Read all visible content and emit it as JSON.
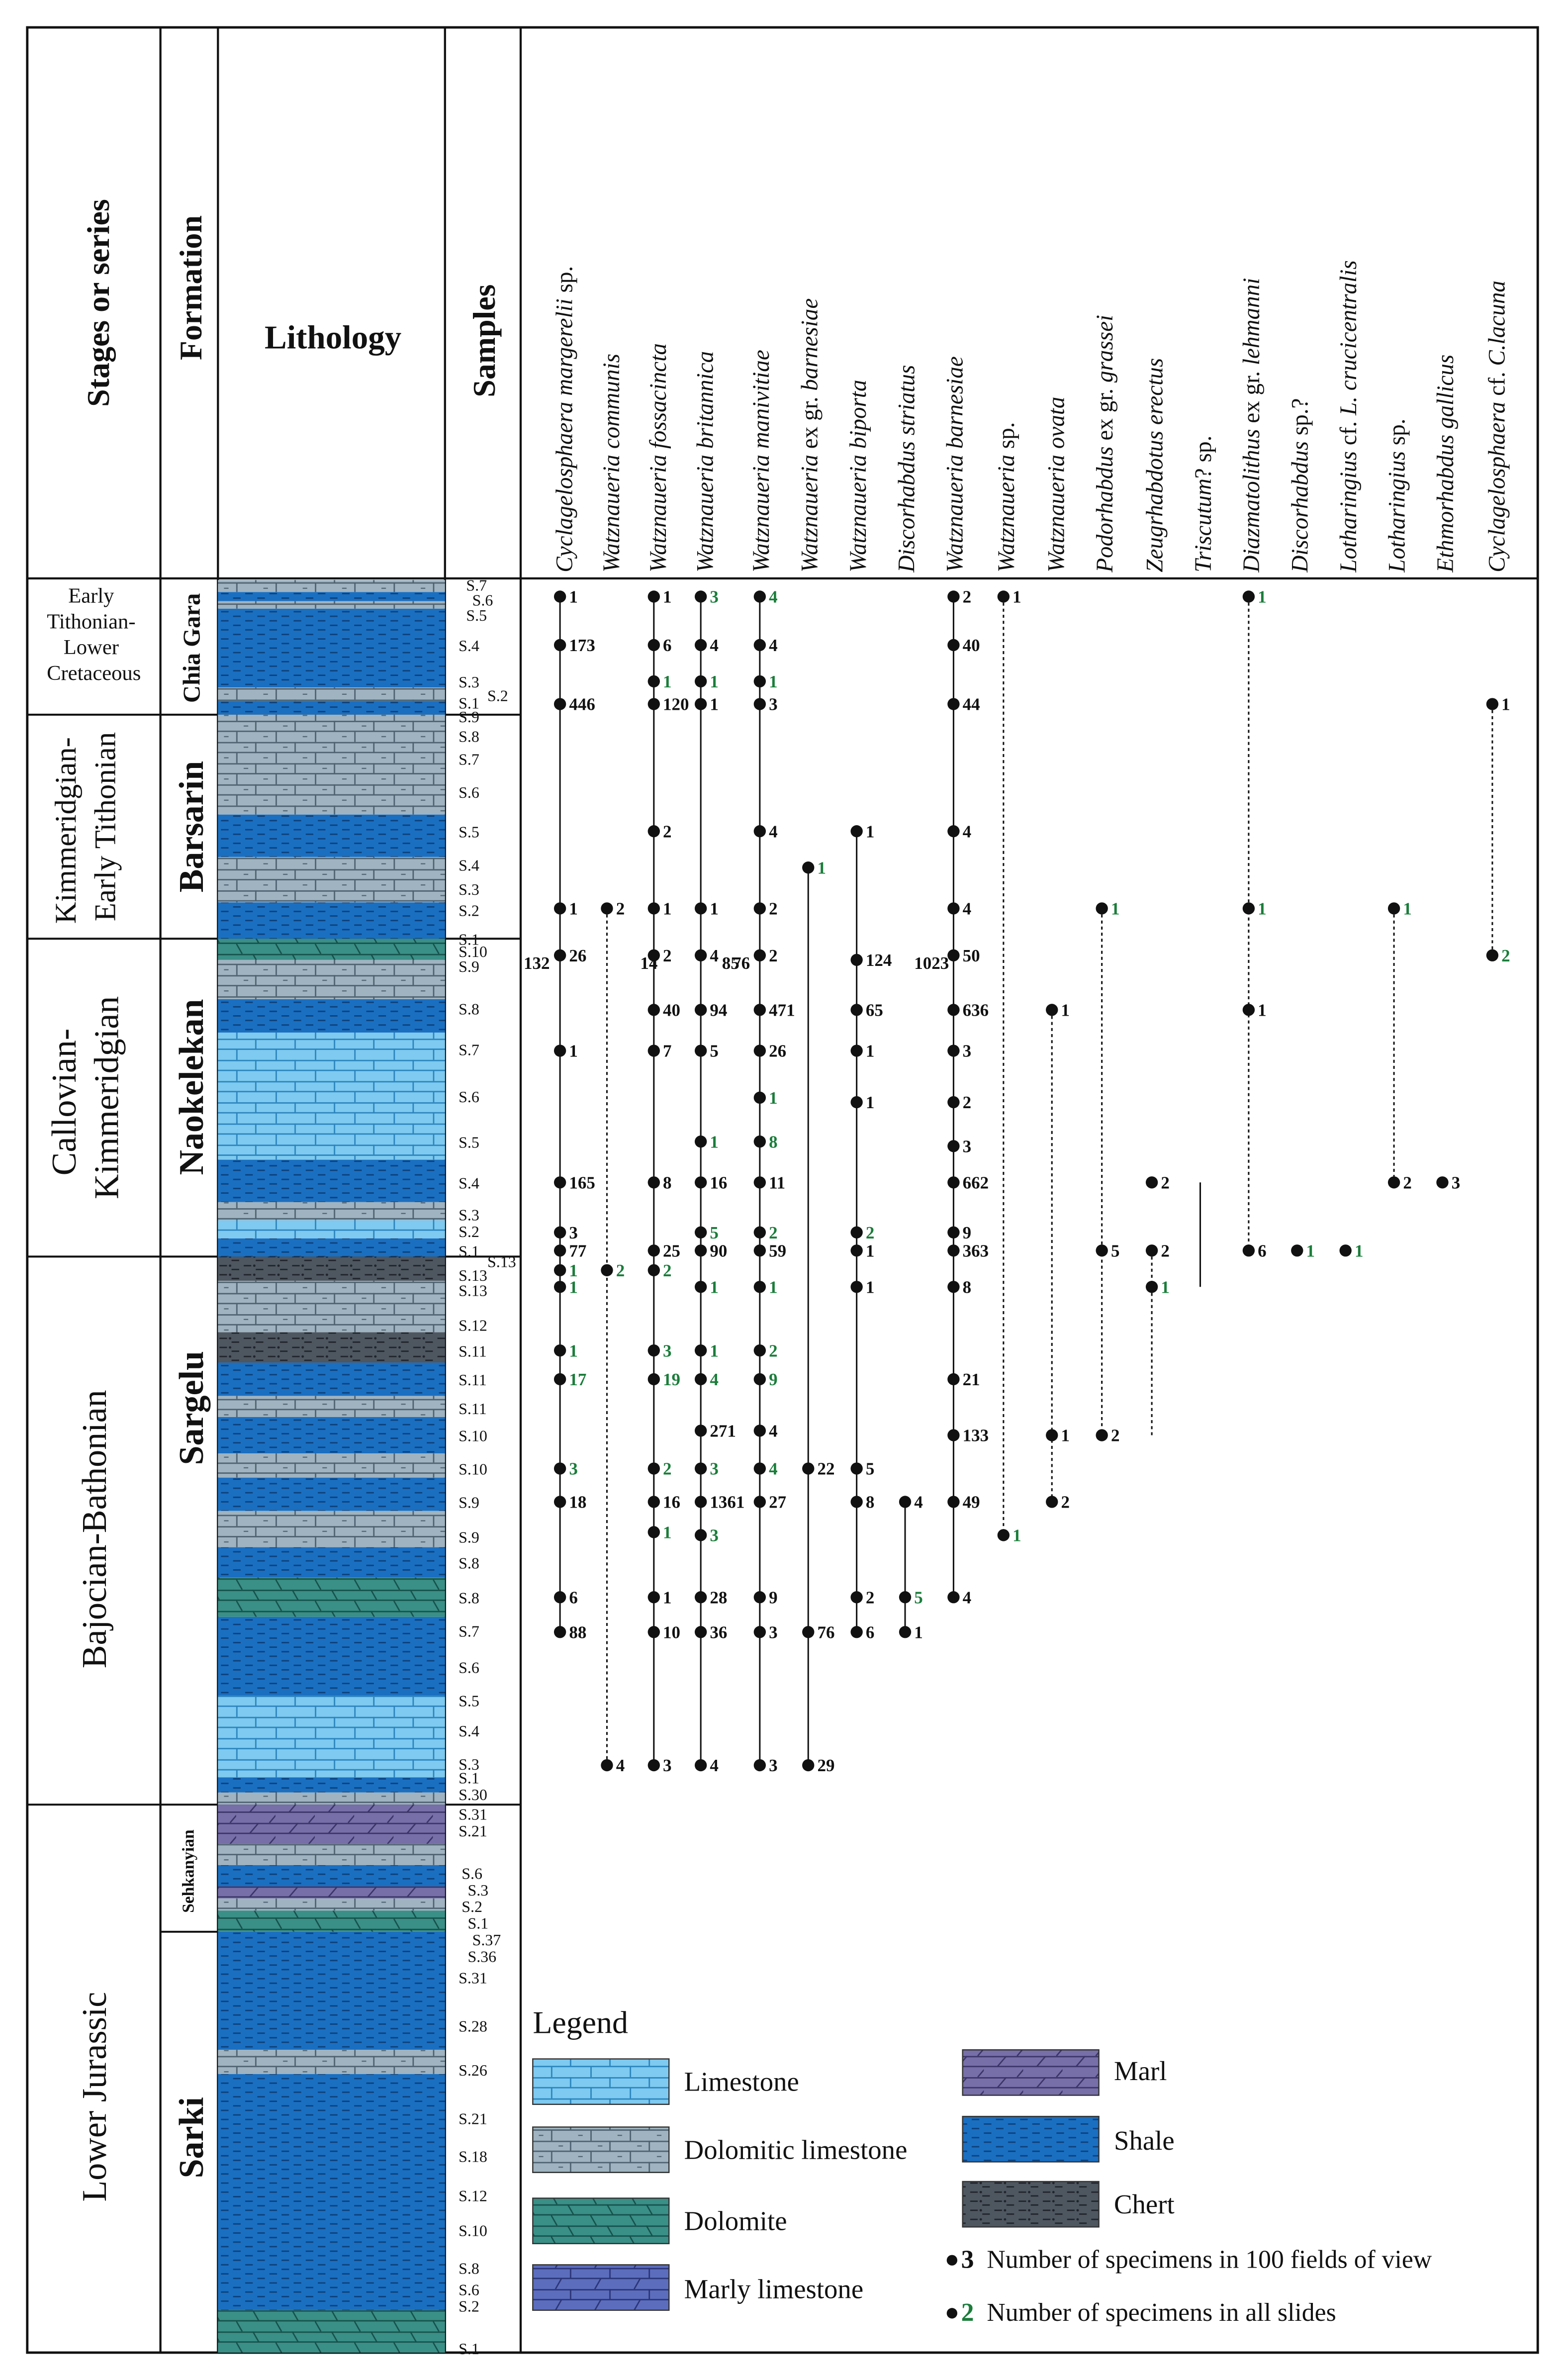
{
  "colors": {
    "shale": "#1a6fc1",
    "shale_line": "#0d3f78",
    "limestone": "#7ecaf0",
    "limestone_line": "#2b84bd",
    "dolomitic": "#9fb3c0",
    "dolomitic_line": "#4d6170",
    "dolomite": "#3a8f86",
    "dolomite_line": "#15514b",
    "marl": "#776fa8",
    "marl_line": "#3b3468",
    "marly": "#5c6dbd",
    "marly_line": "#2a3476",
    "chert": "#4e5660",
    "chert_line": "#1f242a",
    "green": "#1a7d3a",
    "black": "#111111"
  },
  "headers": {
    "stage": "Stages or series",
    "formation": "Formation",
    "lithology": "Lithology",
    "samples": "Samples"
  },
  "species": [
    {
      "genus": "Cyclagelosphaera margerelii",
      "rest": " sp."
    },
    {
      "genus": "Watznaueria communis",
      "rest": ""
    },
    {
      "genus": "Watznaueria fossacincta",
      "rest": ""
    },
    {
      "genus": "Watznaueria britannica",
      "rest": ""
    },
    {
      "genus": "Watznaueria manivitiae",
      "rest": ""
    },
    {
      "genus": "Watznaueria",
      "rest": " ex gr. ",
      "tail": "barnesiae"
    },
    {
      "genus": "Watznaueria biporta",
      "rest": ""
    },
    {
      "genus": "Discorhabdus striatus",
      "rest": ""
    },
    {
      "genus": "Watznaueria barnesiae",
      "rest": ""
    },
    {
      "genus": "Watznaueria",
      "rest": " sp."
    },
    {
      "genus": "Watznaueria ovata",
      "rest": ""
    },
    {
      "genus": "Podorhabdus",
      "rest": " ex gr. ",
      "tail": "grassei"
    },
    {
      "genus": "Zeugrhabdotus erectus",
      "rest": ""
    },
    {
      "genus": "Triscutum",
      "rest": "? sp."
    },
    {
      "genus": "Diazmatolithus",
      "rest": " ex gr. ",
      "tail": "lehmanni"
    },
    {
      "genus": "Discorhabdus",
      "rest": " sp.?"
    },
    {
      "genus": "Lotharingius",
      "rest": " cf. ",
      "tail": "L. crucicentralis"
    },
    {
      "genus": "Lotharingius",
      "rest": " sp."
    },
    {
      "genus": "Ethmorhabdus gallicus",
      "rest": ""
    },
    {
      "genus": "Cyclagelosphaera",
      "rest": " cf. ",
      "tail": "C.lacuna"
    }
  ],
  "stages": [
    {
      "lines": [
        "Early",
        "Tithonian-",
        "Lower",
        "Cretaceous"
      ]
    },
    {
      "lines": [
        "Kimmeridgian-",
        "Early Tithonian"
      ]
    },
    {
      "lines": [
        "Callovian-",
        "Kimmeridgian"
      ]
    },
    {
      "lines": [
        "Bajocian-Bathonian"
      ]
    },
    {
      "lines": [
        "Lower Jurassic"
      ]
    }
  ],
  "formations": [
    "Chia Gara",
    "Barsarin",
    "Naokelekan",
    "Sargelu",
    "Sehkanyian",
    "Sarki"
  ],
  "samples": [
    "S.7",
    "S.6",
    "S.5",
    "S.4",
    "S.3",
    "S.2",
    "S.1",
    "S.9",
    "S.8",
    "S.7",
    "S.6",
    "S.5",
    "S.4",
    "S.3",
    "S.2",
    "S.1",
    "S.10",
    "S.9",
    "S.8",
    "S.7",
    "S.6",
    "S.5",
    "S.4",
    "S.3",
    "S.2",
    "S.1",
    "S.13",
    "S.13",
    "S.13",
    "S.12",
    "S.11",
    "S.11",
    "S.11",
    "S.10",
    "S.10",
    "S.9",
    "S.9",
    "S.8",
    "S.8",
    "S.7",
    "S.6",
    "S.5",
    "S.4",
    "S.3",
    "S.1",
    "S.30",
    "S.31",
    "S.21",
    "S.6",
    "S.3",
    "S.2",
    "S.1",
    "S.37",
    "S.36",
    "S.31",
    "S.28",
    "S.26",
    "S.21",
    "S.18",
    "S.12",
    "S.10",
    "S.8",
    "S.6",
    "S.2",
    "S.1"
  ],
  "occurrences": [
    {
      "species": 1,
      "sample_index": 0,
      "value": "1",
      "green": false
    },
    {
      "species": 3,
      "sample_index": 0,
      "value": "1",
      "green": false
    },
    {
      "species": 4,
      "sample_index": 0,
      "value": "3",
      "green": true
    },
    {
      "species": 5,
      "sample_index": 0,
      "value": "4",
      "green": true
    },
    {
      "species": 9,
      "sample_index": 0,
      "value": "2",
      "green": false
    },
    {
      "species": 10,
      "sample_index": 0,
      "value": "1",
      "green": false
    },
    {
      "species": 15,
      "sample_index": 0,
      "value": "1",
      "green": true
    },
    {
      "species": 1,
      "sample_index": 3,
      "value": "173",
      "green": false
    },
    {
      "species": 3,
      "sample_index": 3,
      "value": "6",
      "green": false
    },
    {
      "species": 4,
      "sample_index": 3,
      "value": "4",
      "green": false
    },
    {
      "species": 5,
      "sample_index": 3,
      "value": "4",
      "green": false
    },
    {
      "species": 9,
      "sample_index": 3,
      "value": "40",
      "green": false
    },
    {
      "species": 3,
      "sample_index": 4,
      "value": "1",
      "green": true
    },
    {
      "species": 4,
      "sample_index": 4,
      "value": "1",
      "green": true
    },
    {
      "species": 5,
      "sample_index": 4,
      "value": "1",
      "green": true
    },
    {
      "species": 1,
      "sample_index": 5,
      "value": "446",
      "green": false
    },
    {
      "species": 3,
      "sample_index": 5,
      "value": "120",
      "green": false
    },
    {
      "species": 4,
      "sample_index": 5,
      "value": "1",
      "green": false
    },
    {
      "species": 5,
      "sample_index": 5,
      "value": "3",
      "green": false
    },
    {
      "species": 9,
      "sample_index": 5,
      "value": "44",
      "green": false
    },
    {
      "species": 20,
      "sample_index": 5,
      "value": "1",
      "green": false
    }
  ],
  "legend": {
    "title": "Legend",
    "limestone": "Limestone",
    "dolomitic": "Dolomitic limestone",
    "dolomite": "Dolomite",
    "marly": "Marly limestone",
    "marl": "Marl",
    "shale": "Shale",
    "chert": "Chert",
    "key1_num": "3",
    "key1_text": "Number of specimens in 100 fields of view",
    "key2_num": "2",
    "key2_text": "Number of specimens in all slides"
  }
}
